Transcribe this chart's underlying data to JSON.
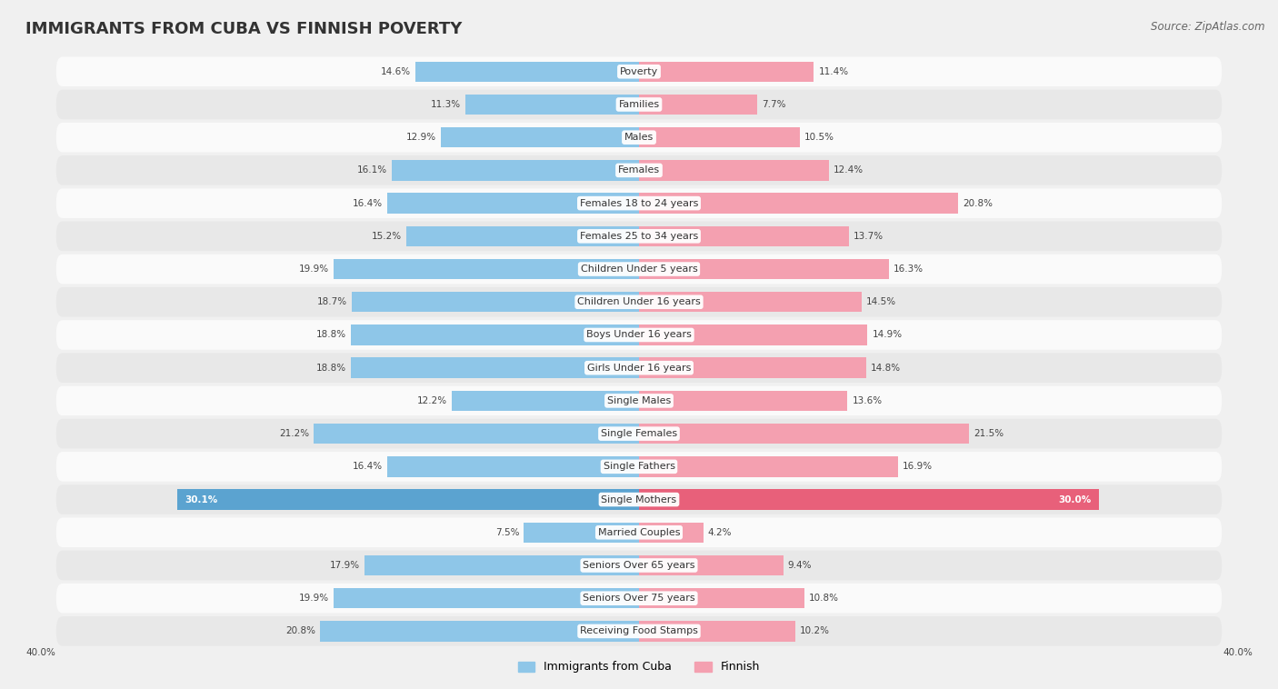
{
  "title": "IMMIGRANTS FROM CUBA VS FINNISH POVERTY",
  "source": "Source: ZipAtlas.com",
  "categories": [
    "Poverty",
    "Families",
    "Males",
    "Females",
    "Females 18 to 24 years",
    "Females 25 to 34 years",
    "Children Under 5 years",
    "Children Under 16 years",
    "Boys Under 16 years",
    "Girls Under 16 years",
    "Single Males",
    "Single Females",
    "Single Fathers",
    "Single Mothers",
    "Married Couples",
    "Seniors Over 65 years",
    "Seniors Over 75 years",
    "Receiving Food Stamps"
  ],
  "cuba_values": [
    14.6,
    11.3,
    12.9,
    16.1,
    16.4,
    15.2,
    19.9,
    18.7,
    18.8,
    18.8,
    12.2,
    21.2,
    16.4,
    30.1,
    7.5,
    17.9,
    19.9,
    20.8
  ],
  "finnish_values": [
    11.4,
    7.7,
    10.5,
    12.4,
    20.8,
    13.7,
    16.3,
    14.5,
    14.9,
    14.8,
    13.6,
    21.5,
    16.9,
    30.0,
    4.2,
    9.4,
    10.8,
    10.2
  ],
  "cuba_color": "#8ec6e8",
  "finnish_color": "#f4a0b0",
  "cuba_highlight_color": "#5ba3d0",
  "finnish_highlight_color": "#e8607a",
  "background_color": "#f0f0f0",
  "row_light_color": "#fafafa",
  "row_dark_color": "#e8e8e8",
  "axis_max": 40.0,
  "legend_label_cuba": "Immigrants from Cuba",
  "legend_label_finnish": "Finnish",
  "title_fontsize": 13,
  "source_fontsize": 8.5,
  "label_fontsize": 8,
  "value_fontsize": 7.5,
  "bar_height": 0.62
}
